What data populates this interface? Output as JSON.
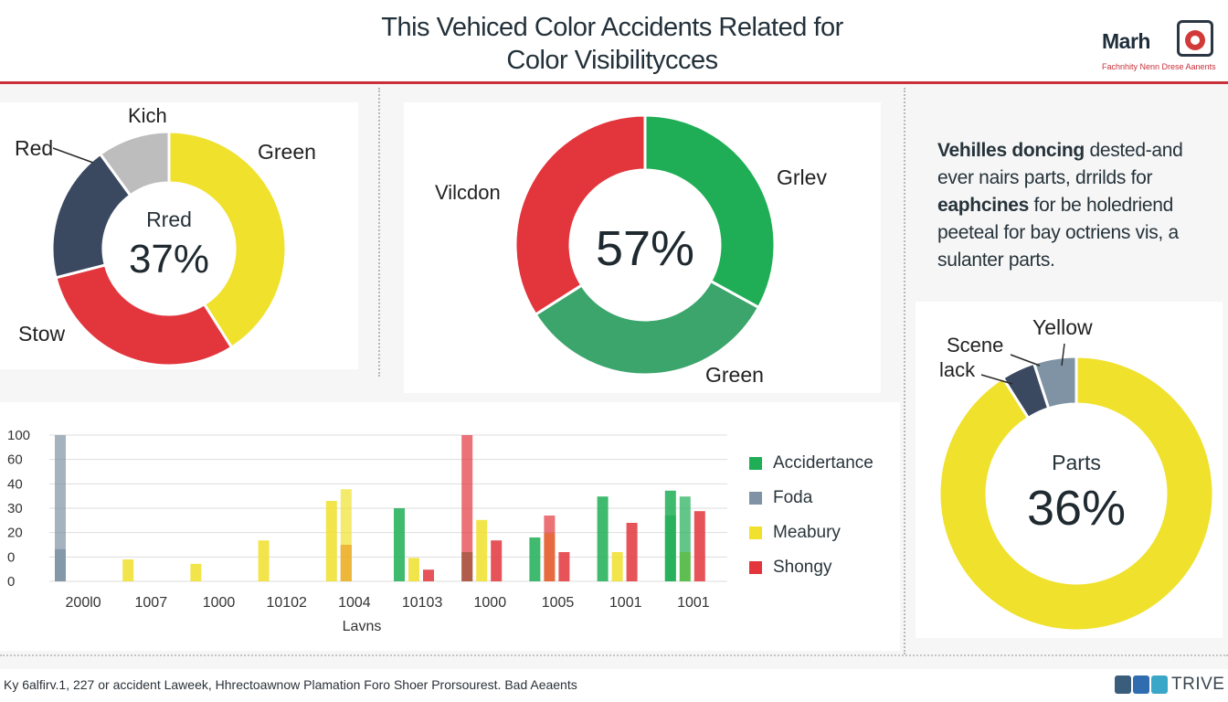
{
  "header": {
    "title_line1": "This Vehiced Color Accidents Related for",
    "title_line2": "Color Visibilitycces"
  },
  "brand": {
    "name": "Marh",
    "tagline": "Fachnhity Nenn Drese Aanents",
    "icon": "car-badge-icon"
  },
  "description": {
    "line1": {
      "bold": "Vehilles doncing",
      "rest": " dested-and"
    },
    "line2": "ever nairs parts, drrilds for",
    "line3": {
      "bold": "eaphcines",
      "rest": " for be holedriend"
    },
    "line4": "peeteal for bay octriens vis, a",
    "line5": "sulanter parts."
  },
  "colors": {
    "green": "#1fae55",
    "teal_green": "#3ca56c",
    "red": "#e2363c",
    "yellow": "#f0e12c",
    "navy": "#3b4960",
    "gray": "#bdbdbd",
    "slate": "#7f93a4",
    "olive": "#b9b52a",
    "accent_rule": "#c9303a"
  },
  "footer": {
    "note": "Ky 6alfirv.1, 227 or accident Laweek, Hhrectoawnow Plamation Foro Shoer Prorsourest. Bad Aeaents",
    "social_icons": [
      "linkedin-icon",
      "facebook-icon",
      "camera-icon"
    ],
    "social_text": "TRIVE"
  },
  "chart_data": [
    {
      "type": "pie",
      "variant": "donut",
      "labels": [
        "Green",
        "Stow",
        "Red",
        "Kich"
      ],
      "values": [
        41,
        30,
        19,
        10
      ],
      "colors": [
        "#f0e12c",
        "#e2363c",
        "#3b4960",
        "#bdbdbd"
      ],
      "center_label": "Rred",
      "center_value": "37%"
    },
    {
      "type": "pie",
      "variant": "donut",
      "labels": [
        "Grlev",
        "Green",
        "Vilcdon"
      ],
      "values": [
        33,
        33,
        34
      ],
      "colors": [
        "#1fae55",
        "#3ca56c",
        "#e2363c"
      ],
      "center_value": "57%"
    },
    {
      "type": "bar",
      "xlabel": "Lavns",
      "categories": [
        "200l0",
        "1007",
        "1000",
        "10102",
        "1004",
        "10103",
        "1000",
        "1005",
        "1001",
        "1001"
      ],
      "ytick_labels": [
        "0",
        "0",
        "20",
        "30",
        "40",
        "60",
        "100"
      ],
      "legend_position": "right",
      "grid": true,
      "series": [
        {
          "name": "Accidertance",
          "color": "#1fae55",
          "values": [
            0,
            0,
            0,
            0,
            0,
            50,
            20,
            30,
            58,
            62
          ]
        },
        {
          "name": "Foda",
          "color": "#7f93a4",
          "values": [
            22,
            0,
            0,
            0,
            0,
            0,
            0,
            0,
            0,
            0
          ]
        },
        {
          "name": "Meabury",
          "color": "#f0e12c",
          "values": [
            0,
            15,
            12,
            28,
            55,
            16,
            42,
            33,
            20,
            20
          ]
        },
        {
          "name": "Shongy",
          "color": "#e2363c",
          "values": [
            0,
            0,
            0,
            0,
            25,
            8,
            28,
            20,
            40,
            48
          ]
        }
      ],
      "extra_bars": [
        {
          "category": "200l0",
          "series": "Foda",
          "value": 100
        },
        {
          "category": "1004",
          "series": "Meabury",
          "value": 63
        },
        {
          "category": "1000",
          "series": "Shongy",
          "value": 100
        },
        {
          "category": "1005",
          "series": "Shongy",
          "value": 45
        },
        {
          "category": "1001",
          "series": "Accidertance",
          "value": 45
        },
        {
          "category": "1001",
          "series": "Accidertance",
          "value": 58
        }
      ]
    },
    {
      "type": "pie",
      "variant": "donut",
      "labels": [
        "Yellow",
        "Scene",
        "lack"
      ],
      "values": [
        91,
        4,
        5
      ],
      "colors": [
        "#f0e12c",
        "#3b4960",
        "#7f93a4"
      ],
      "center_label": "Parts",
      "center_value": "36%"
    }
  ]
}
